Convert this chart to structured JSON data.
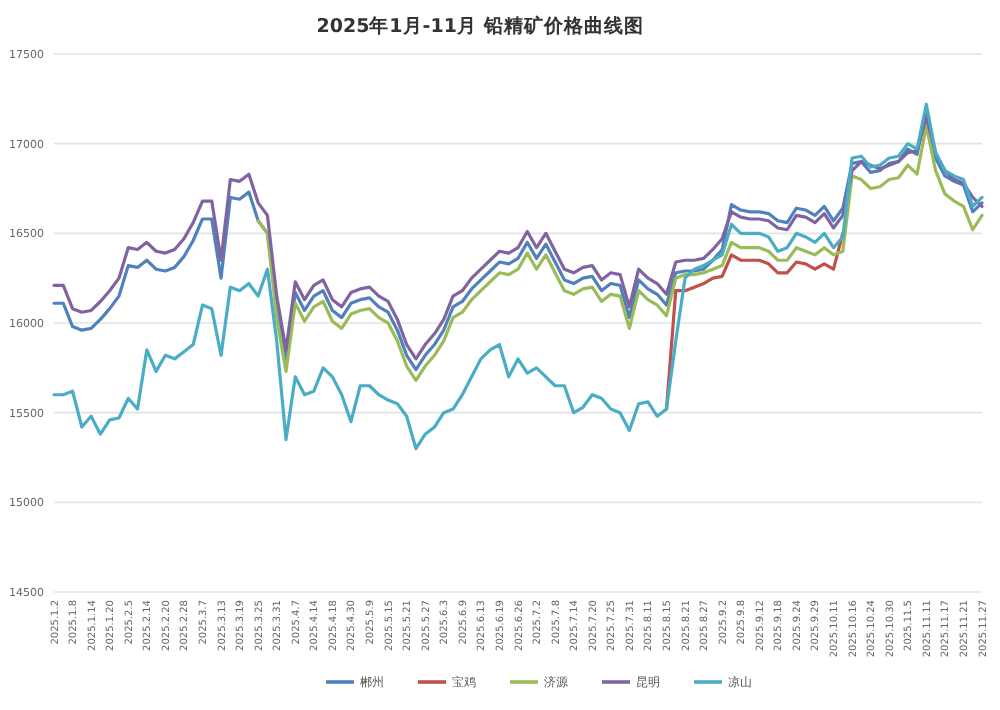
{
  "chart_data": {
    "type": "line",
    "title": "2025年1月-11月 铅精矿价格曲线图",
    "categories": [
      "2025.1.2",
      null,
      "2025.1.8",
      null,
      "2025.1.14",
      null,
      "2025.1.20",
      null,
      "2025.2.5",
      null,
      "2025.2.14",
      null,
      "2025.2.20",
      null,
      "2025.2.28",
      null,
      "2025.3.7",
      null,
      "2025.3.13",
      null,
      "2025.3.19",
      null,
      "2025.3.25",
      null,
      "2025.3.31",
      null,
      "2025.4.7",
      null,
      "2025.4.14",
      null,
      "2025.4.18",
      null,
      "2025.4.30",
      null,
      "2025.5.9",
      null,
      "2025.5.15",
      null,
      "2025.5.21",
      null,
      "2025.5.27",
      null,
      "2025.6.3",
      null,
      "2025.6.9",
      null,
      "2025.6.13",
      null,
      "2025.6.19",
      null,
      "2025.6.26",
      null,
      "2025.7.2",
      null,
      "2025.7.8",
      null,
      "2025.7.14",
      null,
      "2025.7.20",
      null,
      "2025.7.25",
      null,
      "2025.7.31",
      null,
      "2025.8.11",
      null,
      "2025.8.15",
      null,
      "2025.8.21",
      null,
      "2025.8.27",
      null,
      "2025.9.2",
      null,
      "2025.9.8",
      null,
      "2025.9.12",
      null,
      "2025.9.18",
      null,
      "2025.9.24",
      null,
      "2025.9.29",
      null,
      "2025.10.11",
      null,
      "2025.10.16",
      null,
      "2025.10.24",
      null,
      "2025.10.30",
      null,
      "2025.11.5",
      null,
      "2025.11.11",
      null,
      "2025.11.17",
      null,
      "2025.11.21",
      null,
      "2025.11.27"
    ],
    "series": [
      {
        "name": "郴州",
        "color": "#4f81bd",
        "values": [
          16110,
          16110,
          15980,
          15960,
          15970,
          16020,
          16080,
          16150,
          16320,
          16310,
          16350,
          16300,
          16290,
          16310,
          16370,
          16460,
          16580,
          16580,
          16250,
          16700,
          16690,
          16730,
          16570,
          16500,
          16090,
          15790,
          16170,
          16070,
          16150,
          16180,
          16070,
          16030,
          16110,
          16130,
          16140,
          16090,
          16060,
          15960,
          15820,
          15740,
          15820,
          15880,
          15960,
          16090,
          16120,
          16190,
          16240,
          16290,
          16340,
          16330,
          16360,
          16450,
          16360,
          16440,
          16340,
          16240,
          16220,
          16250,
          16260,
          16180,
          16220,
          16210,
          16030,
          16240,
          16190,
          16160,
          16100,
          16280,
          16290,
          16290,
          16300,
          16350,
          16410,
          16660,
          16630,
          16620,
          16620,
          16610,
          16570,
          16560,
          16640,
          16630,
          16600,
          16650,
          16570,
          16640,
          16890,
          16900,
          16840,
          16850,
          16890,
          16900,
          16970,
          16940,
          17190,
          16920,
          16820,
          16790,
          16770,
          16620,
          16670
        ]
      },
      {
        "name": "宝鸡",
        "color": "#c0504d",
        "values": [
          null,
          null,
          null,
          null,
          null,
          null,
          null,
          null,
          null,
          null,
          null,
          null,
          null,
          null,
          null,
          null,
          null,
          null,
          null,
          null,
          null,
          null,
          null,
          null,
          null,
          null,
          null,
          null,
          null,
          null,
          null,
          null,
          null,
          null,
          null,
          null,
          null,
          null,
          null,
          null,
          null,
          null,
          null,
          null,
          null,
          null,
          null,
          null,
          null,
          null,
          null,
          null,
          null,
          null,
          null,
          null,
          null,
          null,
          null,
          null,
          null,
          null,
          null,
          null,
          null,
          null,
          15520,
          16180,
          16180,
          16200,
          16220,
          16250,
          16260,
          16380,
          16350,
          16350,
          16350,
          16330,
          16280,
          16280,
          16340,
          16330,
          16300,
          16330,
          16300,
          16500,
          null,
          null,
          null,
          null,
          null,
          null,
          null,
          null,
          null,
          null,
          null,
          null,
          null,
          null,
          null
        ]
      },
      {
        "name": "济源",
        "color": "#9bbb59",
        "values": [
          null,
          null,
          null,
          null,
          null,
          null,
          null,
          null,
          null,
          null,
          null,
          null,
          null,
          null,
          null,
          null,
          null,
          null,
          null,
          null,
          null,
          null,
          16570,
          16500,
          16030,
          15730,
          16110,
          16010,
          16090,
          16120,
          16010,
          15970,
          16050,
          16070,
          16080,
          16030,
          16000,
          15900,
          15760,
          15680,
          15760,
          15820,
          15900,
          16030,
          16060,
          16130,
          16180,
          16230,
          16280,
          16270,
          16300,
          16390,
          16300,
          16380,
          16280,
          16180,
          16160,
          16190,
          16200,
          16120,
          16160,
          16150,
          15970,
          16180,
          16130,
          16100,
          16040,
          16250,
          16270,
          16270,
          16280,
          16300,
          16320,
          16450,
          16420,
          16420,
          16420,
          16400,
          16350,
          16350,
          16420,
          16400,
          16380,
          16420,
          16380,
          16400,
          16820,
          16800,
          16750,
          16760,
          16800,
          16810,
          16880,
          16830,
          17100,
          16850,
          16720,
          16680,
          16650,
          16520,
          16600
        ]
      },
      {
        "name": "昆明",
        "color": "#8064a2",
        "values": [
          16210,
          16210,
          16080,
          16060,
          16070,
          16120,
          16180,
          16250,
          16420,
          16410,
          16450,
          16400,
          16390,
          16410,
          16470,
          16560,
          16680,
          16680,
          16350,
          16800,
          16790,
          16830,
          16670,
          16600,
          16150,
          15850,
          16230,
          16130,
          16210,
          16240,
          16130,
          16090,
          16170,
          16190,
          16200,
          16150,
          16120,
          16020,
          15880,
          15800,
          15880,
          15940,
          16020,
          16150,
          16180,
          16250,
          16300,
          16350,
          16400,
          16390,
          16420,
          16510,
          16420,
          16500,
          16400,
          16300,
          16280,
          16310,
          16320,
          16240,
          16280,
          16270,
          16090,
          16300,
          16250,
          16220,
          16160,
          16340,
          16350,
          16350,
          16360,
          16410,
          16470,
          16620,
          16590,
          16580,
          16580,
          16570,
          16530,
          16520,
          16600,
          16590,
          16560,
          16610,
          16530,
          16600,
          16850,
          16900,
          16880,
          16860,
          16880,
          16900,
          16950,
          16960,
          17150,
          16950,
          16850,
          16800,
          16780,
          16700,
          16650
        ]
      },
      {
        "name": "凉山",
        "color": "#4bacc6",
        "values": [
          15600,
          15600,
          15620,
          15420,
          15480,
          15380,
          15460,
          15470,
          15580,
          15520,
          15850,
          15730,
          15820,
          15800,
          15840,
          15880,
          16100,
          16080,
          15820,
          16200,
          16180,
          16220,
          16150,
          16300,
          15900,
          15350,
          15700,
          15600,
          15620,
          15750,
          15700,
          15600,
          15450,
          15650,
          15650,
          15600,
          15570,
          15550,
          15480,
          15300,
          15380,
          15420,
          15500,
          15520,
          15600,
          15700,
          15800,
          15850,
          15880,
          15700,
          15800,
          15720,
          15750,
          15700,
          15650,
          15650,
          15500,
          15530,
          15600,
          15580,
          15520,
          15500,
          15400,
          15550,
          15560,
          15480,
          15520,
          15900,
          16250,
          16300,
          16320,
          16350,
          16380,
          16550,
          16500,
          16500,
          16500,
          16480,
          16400,
          16420,
          16500,
          16480,
          16450,
          16500,
          16420,
          16480,
          16920,
          16930,
          16870,
          16880,
          16920,
          16930,
          17000,
          16970,
          17220,
          16950,
          16850,
          16820,
          16800,
          16650,
          16700
        ]
      }
    ],
    "ylim": [
      14500,
      17500
    ],
    "yticks": [
      14500,
      15000,
      15500,
      16000,
      16500,
      17000,
      17500
    ],
    "grid": "y",
    "legend": "bottom",
    "marker": "none",
    "line_style": "solid"
  }
}
